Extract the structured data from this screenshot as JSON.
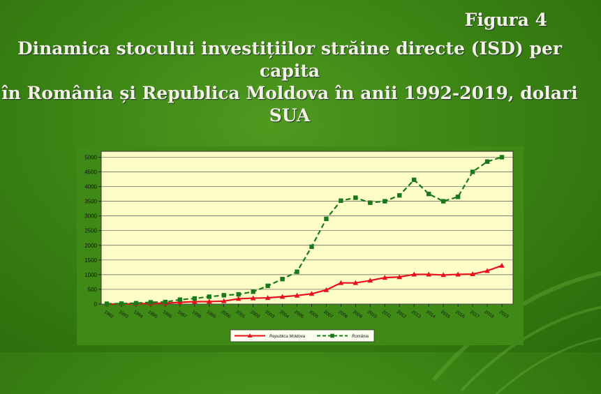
{
  "figure_label": "Figura 4",
  "title_lines": [
    "Dinamica stocului investițiilor străine directe (ISD) per capita",
    "în România și Republica Moldova în anii 1992-2019, dolari",
    "SUA"
  ],
  "chart_data": {
    "type": "line",
    "categories": [
      "1992",
      "1993",
      "1994",
      "1995",
      "1996",
      "1997",
      "1998",
      "1999",
      "2000",
      "2001",
      "2002",
      "2003",
      "2004",
      "2005",
      "2006",
      "2007",
      "2008",
      "2009",
      "2010",
      "2011",
      "2012",
      "2013",
      "2014",
      "2015",
      "2016",
      "2017",
      "2018",
      "2019"
    ],
    "series": [
      {
        "name": "Republica Moldova",
        "color": "#e8101a",
        "marker": "triangle",
        "dash": "solid",
        "values": [
          0,
          5,
          10,
          20,
          30,
          60,
          80,
          85,
          100,
          180,
          200,
          210,
          250,
          290,
          350,
          480,
          720,
          720,
          800,
          900,
          920,
          1010,
          1010,
          990,
          1010,
          1020,
          1130,
          1310
        ]
      },
      {
        "name": "România",
        "color": "#1a7a1a",
        "marker": "square",
        "dash": "dashed",
        "values": [
          10,
          15,
          30,
          60,
          70,
          150,
          190,
          250,
          300,
          330,
          420,
          620,
          850,
          1100,
          1950,
          2900,
          3520,
          3620,
          3450,
          3500,
          3700,
          4230,
          3750,
          3500,
          3650,
          4500,
          4850,
          5000
        ]
      }
    ],
    "ylim": [
      0,
      5200
    ],
    "yticks": [
      0,
      500,
      1000,
      1500,
      2000,
      2500,
      3000,
      3500,
      4000,
      4500,
      5000
    ],
    "grid": true,
    "legend": "bottom"
  }
}
